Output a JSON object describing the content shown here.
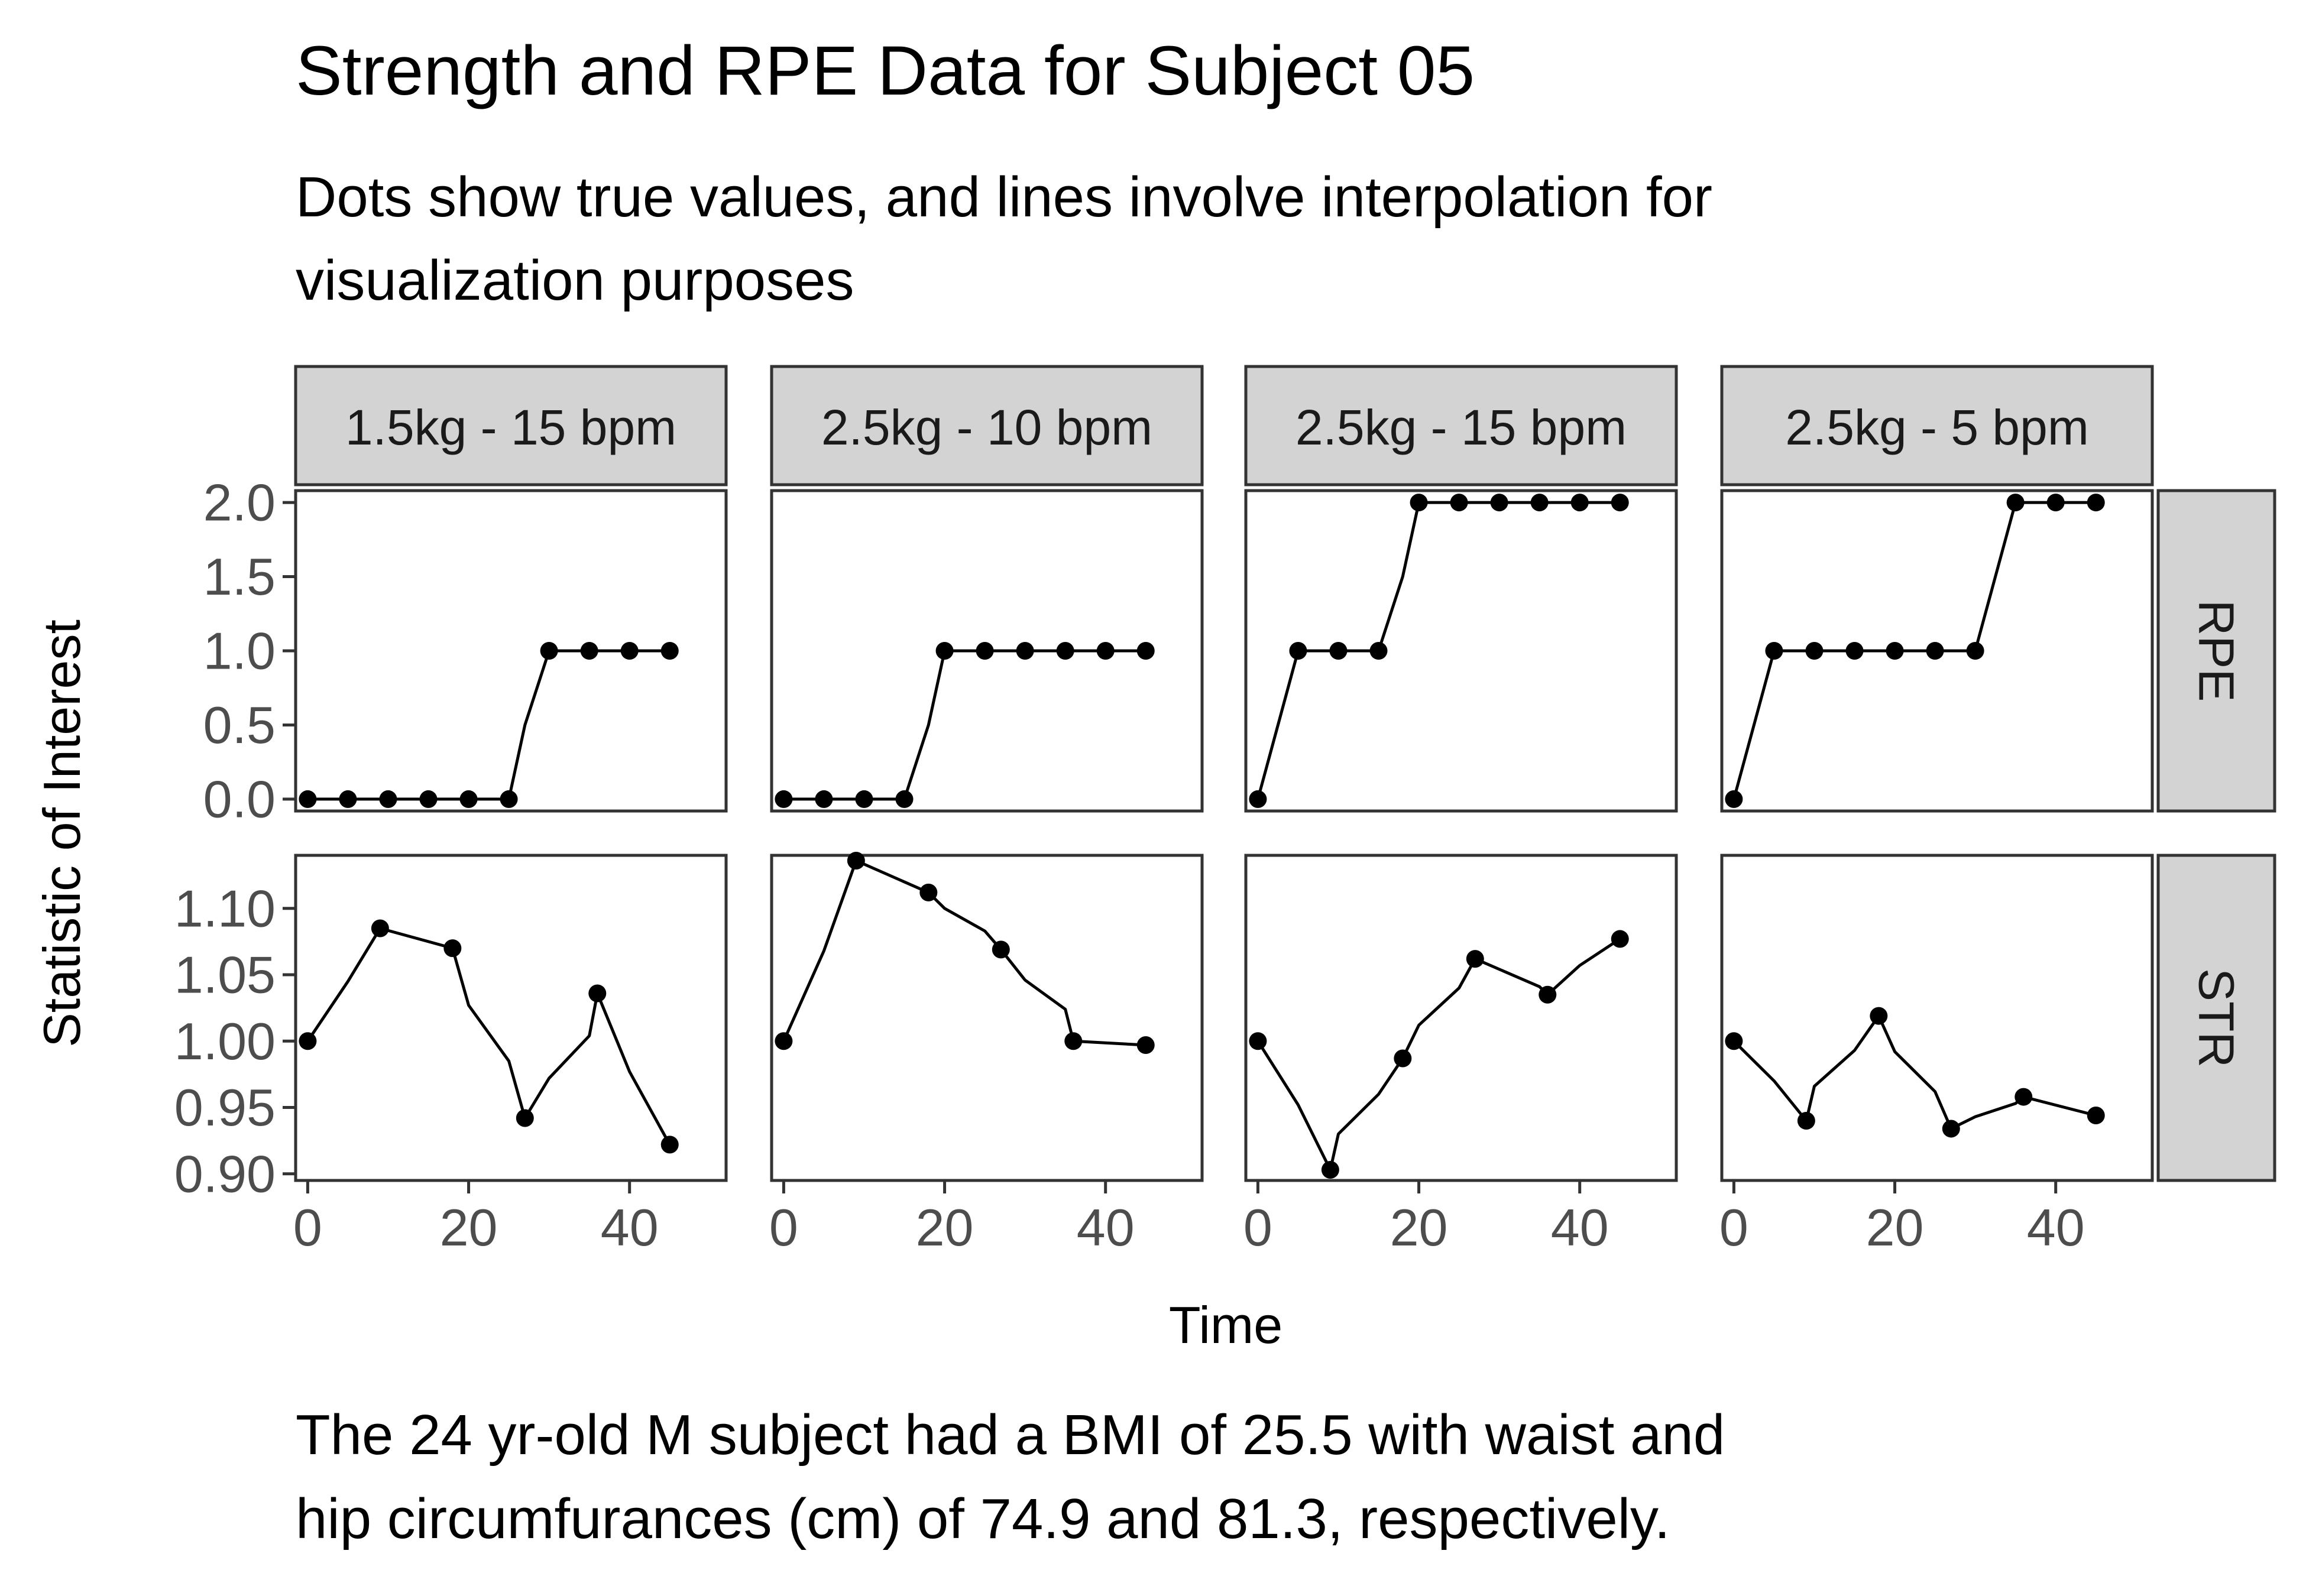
{
  "chart_data": {
    "type": "line",
    "title": "Strength and RPE Data for Subject 05",
    "subtitle_lines": [
      "Dots show true values, and lines involve interpolation for",
      "visualization purposes"
    ],
    "caption_lines": [
      "The 24 yr-old M subject had a BMI of 25.5 with waist and",
      "hip circumfurances (cm) of 74.9 and 81.3, respectively."
    ],
    "xlabel": "Time",
    "ylabel": "Statistic of Interest",
    "facet_columns": [
      "1.5kg - 15 bpm",
      "2.5kg - 10 bpm",
      "2.5kg - 15 bpm",
      "2.5kg - 5 bpm"
    ],
    "facet_rows": [
      "RPE",
      "STR"
    ],
    "xlim": [
      -1.5,
      52
    ],
    "x_ticks": [
      0,
      20,
      40
    ],
    "x_tick_labels": [
      "0",
      "20",
      "40"
    ],
    "rows": {
      "RPE": {
        "ylim": [
          -0.08,
          2.08
        ],
        "y_ticks": [
          0.0,
          0.5,
          1.0,
          1.5,
          2.0
        ],
        "y_tick_labels": [
          "0.0",
          "0.5",
          "1.0",
          "1.5",
          "2.0"
        ]
      },
      "STR": {
        "ylim": [
          0.895,
          1.14
        ],
        "y_ticks": [
          0.9,
          0.95,
          1.0,
          1.05,
          1.1
        ],
        "y_tick_labels": [
          "0.90",
          "0.95",
          "1.00",
          "1.05",
          "1.10"
        ]
      }
    },
    "panels": [
      {
        "column": "1.5kg - 15 bpm",
        "row": "RPE",
        "points": [
          [
            0,
            0
          ],
          [
            5,
            0
          ],
          [
            10,
            0
          ],
          [
            15,
            0
          ],
          [
            20,
            0
          ],
          [
            25,
            0
          ],
          [
            30,
            1
          ],
          [
            35,
            1
          ],
          [
            40,
            1
          ],
          [
            45,
            1
          ]
        ],
        "line": [
          [
            0,
            0
          ],
          [
            5,
            0
          ],
          [
            10,
            0
          ],
          [
            15,
            0
          ],
          [
            20,
            0
          ],
          [
            25,
            0
          ],
          [
            27,
            0.5
          ],
          [
            30,
            1
          ],
          [
            35,
            1
          ],
          [
            40,
            1
          ],
          [
            45,
            1
          ]
        ]
      },
      {
        "column": "2.5kg - 10 bpm",
        "row": "RPE",
        "points": [
          [
            0,
            0
          ],
          [
            5,
            0
          ],
          [
            10,
            0
          ],
          [
            15,
            0
          ],
          [
            20,
            1
          ],
          [
            25,
            1
          ],
          [
            30,
            1
          ],
          [
            35,
            1
          ],
          [
            40,
            1
          ],
          [
            45,
            1
          ]
        ],
        "line": [
          [
            0,
            0
          ],
          [
            5,
            0
          ],
          [
            10,
            0
          ],
          [
            15,
            0
          ],
          [
            18,
            0.5
          ],
          [
            20,
            1
          ],
          [
            25,
            1
          ],
          [
            30,
            1
          ],
          [
            35,
            1
          ],
          [
            40,
            1
          ],
          [
            45,
            1
          ]
        ]
      },
      {
        "column": "2.5kg - 15 bpm",
        "row": "RPE",
        "points": [
          [
            0,
            0
          ],
          [
            5,
            1
          ],
          [
            10,
            1
          ],
          [
            15,
            1
          ],
          [
            20,
            2
          ],
          [
            25,
            2
          ],
          [
            30,
            2
          ],
          [
            35,
            2
          ],
          [
            40,
            2
          ],
          [
            45,
            2
          ]
        ],
        "line": [
          [
            0,
            0
          ],
          [
            5,
            1
          ],
          [
            10,
            1
          ],
          [
            15,
            1
          ],
          [
            18,
            1.5
          ],
          [
            20,
            2
          ],
          [
            25,
            2
          ],
          [
            30,
            2
          ],
          [
            35,
            2
          ],
          [
            40,
            2
          ],
          [
            45,
            2
          ]
        ]
      },
      {
        "column": "2.5kg - 5 bpm",
        "row": "RPE",
        "points": [
          [
            0,
            0
          ],
          [
            5,
            1
          ],
          [
            10,
            1
          ],
          [
            15,
            1
          ],
          [
            20,
            1
          ],
          [
            25,
            1
          ],
          [
            30,
            1
          ],
          [
            35,
            2
          ],
          [
            40,
            2
          ],
          [
            45,
            2
          ]
        ],
        "line": [
          [
            0,
            0
          ],
          [
            5,
            1
          ],
          [
            10,
            1
          ],
          [
            15,
            1
          ],
          [
            20,
            1
          ],
          [
            25,
            1
          ],
          [
            30,
            1
          ],
          [
            35,
            2
          ],
          [
            40,
            2
          ],
          [
            45,
            2
          ]
        ]
      },
      {
        "column": "1.5kg - 15 bpm",
        "row": "STR",
        "points": [
          [
            0,
            1.0
          ],
          [
            9,
            1.085
          ],
          [
            18,
            1.07
          ],
          [
            27,
            0.942
          ],
          [
            36,
            1.036
          ],
          [
            45,
            0.922
          ]
        ],
        "line": [
          [
            0,
            1.0
          ],
          [
            5,
            1.045
          ],
          [
            9,
            1.085
          ],
          [
            18,
            1.07
          ],
          [
            20,
            1.027
          ],
          [
            25,
            0.985
          ],
          [
            27,
            0.942
          ],
          [
            30,
            0.972
          ],
          [
            35,
            1.004
          ],
          [
            36,
            1.036
          ],
          [
            40,
            0.977
          ],
          [
            45,
            0.922
          ]
        ]
      },
      {
        "column": "2.5kg - 10 bpm",
        "row": "STR",
        "points": [
          [
            0,
            1.0
          ],
          [
            9,
            1.136
          ],
          [
            18,
            1.112
          ],
          [
            27,
            1.069
          ],
          [
            36,
            1.0
          ],
          [
            45,
            0.997
          ]
        ],
        "line": [
          [
            0,
            1.0
          ],
          [
            5,
            1.068
          ],
          [
            9,
            1.136
          ],
          [
            15,
            1.12
          ],
          [
            18,
            1.112
          ],
          [
            20,
            1.1
          ],
          [
            25,
            1.083
          ],
          [
            27,
            1.069
          ],
          [
            30,
            1.046
          ],
          [
            35,
            1.024
          ],
          [
            36,
            1.0
          ],
          [
            45,
            0.997
          ]
        ]
      },
      {
        "column": "2.5kg - 15 bpm",
        "row": "STR",
        "points": [
          [
            0,
            1.0
          ],
          [
            9,
            0.903
          ],
          [
            18,
            0.987
          ],
          [
            27,
            1.062
          ],
          [
            36,
            1.035
          ],
          [
            45,
            1.077
          ]
        ],
        "line": [
          [
            0,
            1.0
          ],
          [
            5,
            0.952
          ],
          [
            9,
            0.903
          ],
          [
            10,
            0.93
          ],
          [
            15,
            0.96
          ],
          [
            18,
            0.987
          ],
          [
            20,
            1.012
          ],
          [
            25,
            1.04
          ],
          [
            27,
            1.062
          ],
          [
            35,
            1.041
          ],
          [
            36,
            1.035
          ],
          [
            40,
            1.057
          ],
          [
            45,
            1.077
          ]
        ]
      },
      {
        "column": "2.5kg - 5 bpm",
        "row": "STR",
        "points": [
          [
            0,
            1.0
          ],
          [
            9,
            0.94
          ],
          [
            18,
            1.019
          ],
          [
            27,
            0.934
          ],
          [
            36,
            0.958
          ],
          [
            45,
            0.944
          ]
        ],
        "line": [
          [
            0,
            1.0
          ],
          [
            5,
            0.97
          ],
          [
            9,
            0.94
          ],
          [
            10,
            0.966
          ],
          [
            15,
            0.993
          ],
          [
            18,
            1.019
          ],
          [
            20,
            0.992
          ],
          [
            25,
            0.962
          ],
          [
            27,
            0.934
          ],
          [
            30,
            0.943
          ],
          [
            35,
            0.953
          ],
          [
            36,
            0.958
          ],
          [
            45,
            0.944
          ]
        ]
      }
    ]
  }
}
